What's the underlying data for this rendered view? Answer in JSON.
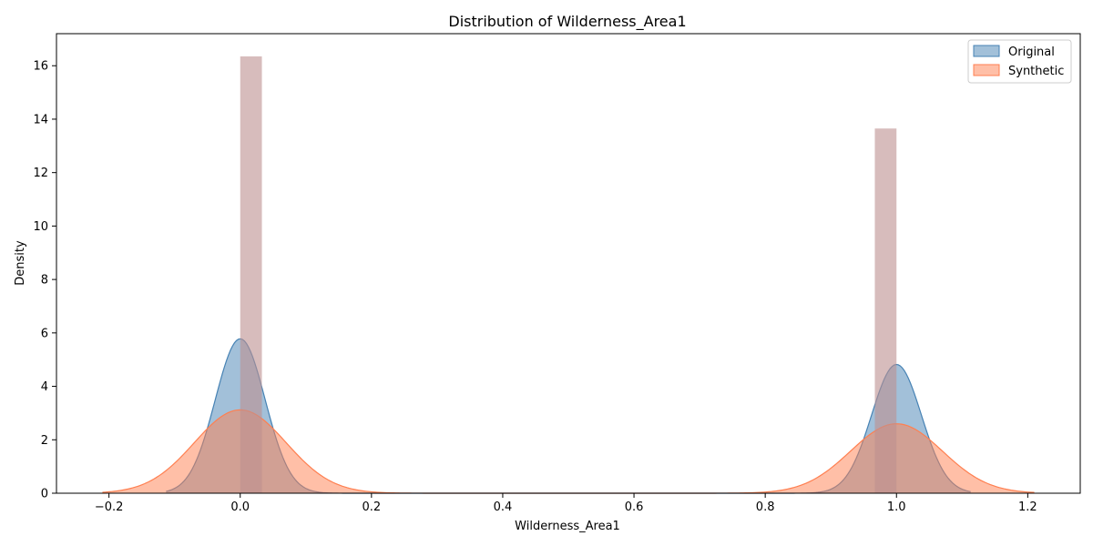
{
  "chart_data": {
    "type": "area",
    "title": "Distribution of Wilderness_Area1",
    "xlabel": "Wilderness_Area1",
    "ylabel": "Density",
    "xlim": [
      -0.28,
      1.28
    ],
    "ylim": [
      0,
      17.2
    ],
    "xticks": [
      -0.2,
      0.0,
      0.2,
      0.4,
      0.6,
      0.8,
      1.0,
      1.2
    ],
    "xtick_labels": [
      "−0.2",
      "0.0",
      "0.2",
      "0.4",
      "0.6",
      "0.8",
      "1.0",
      "1.2"
    ],
    "yticks": [
      0,
      2,
      4,
      6,
      8,
      10,
      12,
      14,
      16
    ],
    "ytick_labels": [
      "0",
      "2",
      "4",
      "6",
      "8",
      "10",
      "12",
      "14",
      "16"
    ],
    "grid": false,
    "legend_position": "top-right",
    "histogram": {
      "color": "#bc8f8f",
      "bins": [
        {
          "x0": 0.0,
          "x1": 0.033,
          "density": 16.35
        },
        {
          "x0": 0.967,
          "x1": 1.0,
          "density": 13.65
        }
      ]
    },
    "series": [
      {
        "name": "Original",
        "color": "#4682b4",
        "fill": "#4682b4",
        "peaks": [
          {
            "center": 0.0,
            "height": 5.78,
            "sigma": 0.038
          },
          {
            "center": 1.0,
            "height": 4.82,
            "sigma": 0.038
          }
        ],
        "x_range": [
          -0.113,
          1.113
        ]
      },
      {
        "name": "Synthetic",
        "color": "#ff7f50",
        "fill": "#ff7f50",
        "peaks": [
          {
            "center": 0.0,
            "height": 3.12,
            "sigma": 0.07
          },
          {
            "center": 1.0,
            "height": 2.6,
            "sigma": 0.07
          }
        ],
        "x_range": [
          -0.21,
          1.21
        ]
      }
    ]
  }
}
